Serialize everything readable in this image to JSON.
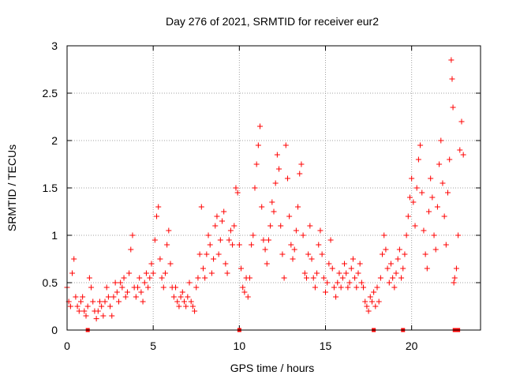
{
  "chart_data": {
    "type": "scatter",
    "title": "Day 276 of 2021, SRMTID for receiver eur2",
    "xlabel": "GPS time / hours",
    "ylabel": "SRMTID / TECUs",
    "xlim": [
      0,
      24
    ],
    "ylim": [
      0,
      3
    ],
    "xticks": [
      0,
      5,
      10,
      15,
      20
    ],
    "xtick_labels": [
      "0",
      "5",
      "10",
      "15",
      "20"
    ],
    "yticks": [
      0,
      0.5,
      1,
      1.5,
      2,
      2.5,
      3
    ],
    "ytick_labels": [
      "0",
      "0.5",
      "1",
      "1.5",
      "2",
      "2.5",
      "3"
    ],
    "grid": true,
    "marker": "+",
    "color": "#ff0000",
    "series": [
      {
        "name": "SRMTID",
        "points": [
          [
            0.0,
            0.45
          ],
          [
            0.1,
            0.3
          ],
          [
            0.2,
            0.25
          ],
          [
            0.3,
            0.6
          ],
          [
            0.4,
            0.75
          ],
          [
            0.5,
            0.35
          ],
          [
            0.6,
            0.25
          ],
          [
            0.7,
            0.2
          ],
          [
            0.8,
            0.3
          ],
          [
            0.9,
            0.35
          ],
          [
            1.0,
            0.2
          ],
          [
            1.1,
            0.15
          ],
          [
            1.2,
            0.25
          ],
          [
            1.3,
            0.55
          ],
          [
            1.4,
            0.45
          ],
          [
            1.5,
            0.3
          ],
          [
            1.6,
            0.2
          ],
          [
            1.7,
            0.12
          ],
          [
            1.8,
            0.2
          ],
          [
            1.9,
            0.3
          ],
          [
            2.0,
            0.25
          ],
          [
            2.1,
            0.15
          ],
          [
            2.2,
            0.3
          ],
          [
            2.3,
            0.45
          ],
          [
            2.4,
            0.35
          ],
          [
            2.5,
            0.25
          ],
          [
            2.6,
            0.15
          ],
          [
            2.7,
            0.35
          ],
          [
            2.8,
            0.5
          ],
          [
            2.9,
            0.4
          ],
          [
            3.0,
            0.3
          ],
          [
            3.1,
            0.5
          ],
          [
            3.2,
            0.45
          ],
          [
            3.3,
            0.55
          ],
          [
            3.4,
            0.35
          ],
          [
            3.5,
            0.4
          ],
          [
            3.6,
            0.6
          ],
          [
            3.7,
            0.85
          ],
          [
            3.8,
            1.0
          ],
          [
            3.9,
            0.45
          ],
          [
            4.0,
            0.35
          ],
          [
            4.1,
            0.45
          ],
          [
            4.2,
            0.55
          ],
          [
            4.3,
            0.4
          ],
          [
            4.4,
            0.3
          ],
          [
            4.5,
            0.5
          ],
          [
            4.6,
            0.6
          ],
          [
            4.7,
            0.45
          ],
          [
            4.8,
            0.55
          ],
          [
            4.9,
            0.7
          ],
          [
            5.0,
            0.6
          ],
          [
            5.1,
            0.95
          ],
          [
            5.2,
            1.2
          ],
          [
            5.3,
            1.3
          ],
          [
            5.4,
            0.75
          ],
          [
            5.5,
            0.55
          ],
          [
            5.6,
            0.45
          ],
          [
            5.7,
            0.6
          ],
          [
            5.8,
            0.9
          ],
          [
            5.9,
            1.05
          ],
          [
            6.0,
            0.7
          ],
          [
            6.1,
            0.45
          ],
          [
            6.2,
            0.35
          ],
          [
            6.3,
            0.45
          ],
          [
            6.4,
            0.3
          ],
          [
            6.5,
            0.25
          ],
          [
            6.6,
            0.35
          ],
          [
            6.7,
            0.4
          ],
          [
            6.8,
            0.3
          ],
          [
            6.9,
            0.25
          ],
          [
            7.0,
            0.35
          ],
          [
            7.1,
            0.5
          ],
          [
            7.2,
            0.3
          ],
          [
            7.3,
            0.25
          ],
          [
            7.4,
            0.2
          ],
          [
            7.5,
            0.45
          ],
          [
            7.6,
            0.55
          ],
          [
            7.7,
            0.8
          ],
          [
            7.8,
            1.3
          ],
          [
            7.9,
            0.65
          ],
          [
            8.0,
            0.55
          ],
          [
            8.1,
            0.8
          ],
          [
            8.2,
            1.0
          ],
          [
            8.3,
            0.9
          ],
          [
            8.4,
            0.6
          ],
          [
            8.5,
            0.75
          ],
          [
            8.6,
            1.1
          ],
          [
            8.7,
            1.2
          ],
          [
            8.8,
            0.8
          ],
          [
            8.9,
            0.95
          ],
          [
            9.0,
            1.15
          ],
          [
            9.1,
            1.25
          ],
          [
            9.2,
            0.7
          ],
          [
            9.3,
            0.6
          ],
          [
            9.4,
            0.95
          ],
          [
            9.5,
            1.05
          ],
          [
            9.6,
            0.9
          ],
          [
            9.7,
            1.1
          ],
          [
            9.8,
            1.5
          ],
          [
            9.9,
            1.45
          ],
          [
            10.0,
            0.9
          ],
          [
            10.1,
            0.65
          ],
          [
            10.2,
            0.45
          ],
          [
            10.3,
            0.4
          ],
          [
            10.4,
            0.55
          ],
          [
            10.5,
            0.35
          ],
          [
            10.6,
            0.55
          ],
          [
            10.7,
            0.9
          ],
          [
            10.8,
            1.0
          ],
          [
            10.9,
            1.5
          ],
          [
            11.0,
            1.75
          ],
          [
            11.1,
            1.95
          ],
          [
            11.2,
            2.15
          ],
          [
            11.3,
            1.3
          ],
          [
            11.4,
            0.95
          ],
          [
            11.5,
            0.85
          ],
          [
            11.6,
            0.7
          ],
          [
            11.7,
            0.95
          ],
          [
            11.8,
            1.1
          ],
          [
            11.9,
            1.35
          ],
          [
            12.0,
            1.25
          ],
          [
            12.1,
            1.55
          ],
          [
            12.2,
            1.85
          ],
          [
            12.3,
            1.7
          ],
          [
            12.4,
            1.1
          ],
          [
            12.5,
            0.8
          ],
          [
            12.6,
            0.55
          ],
          [
            12.7,
            1.95
          ],
          [
            12.8,
            1.6
          ],
          [
            12.9,
            1.2
          ],
          [
            13.0,
            0.9
          ],
          [
            13.1,
            0.75
          ],
          [
            13.2,
            0.85
          ],
          [
            13.3,
            1.05
          ],
          [
            13.4,
            1.3
          ],
          [
            13.5,
            1.65
          ],
          [
            13.6,
            1.75
          ],
          [
            13.7,
            1.0
          ],
          [
            13.8,
            0.6
          ],
          [
            13.9,
            0.55
          ],
          [
            14.0,
            0.8
          ],
          [
            14.1,
            1.1
          ],
          [
            14.2,
            0.75
          ],
          [
            14.3,
            0.55
          ],
          [
            14.4,
            0.45
          ],
          [
            14.5,
            0.6
          ],
          [
            14.6,
            0.9
          ],
          [
            14.7,
            1.05
          ],
          [
            14.8,
            0.8
          ],
          [
            14.9,
            0.55
          ],
          [
            15.0,
            0.4
          ],
          [
            15.1,
            0.5
          ],
          [
            15.2,
            0.7
          ],
          [
            15.3,
            0.95
          ],
          [
            15.4,
            0.65
          ],
          [
            15.5,
            0.45
          ],
          [
            15.6,
            0.35
          ],
          [
            15.7,
            0.5
          ],
          [
            15.8,
            0.6
          ],
          [
            15.9,
            0.45
          ],
          [
            16.0,
            0.55
          ],
          [
            16.1,
            0.7
          ],
          [
            16.2,
            0.6
          ],
          [
            16.3,
            0.45
          ],
          [
            16.4,
            0.5
          ],
          [
            16.5,
            0.65
          ],
          [
            16.6,
            0.75
          ],
          [
            16.7,
            0.55
          ],
          [
            16.8,
            0.45
          ],
          [
            16.9,
            0.6
          ],
          [
            17.0,
            0.7
          ],
          [
            17.1,
            0.5
          ],
          [
            17.2,
            0.45
          ],
          [
            17.3,
            0.3
          ],
          [
            17.4,
            0.25
          ],
          [
            17.5,
            0.2
          ],
          [
            17.6,
            0.35
          ],
          [
            17.7,
            0.3
          ],
          [
            17.8,
            0.4
          ],
          [
            17.9,
            0.25
          ],
          [
            18.0,
            0.45
          ],
          [
            18.1,
            0.3
          ],
          [
            18.2,
            0.55
          ],
          [
            18.3,
            0.8
          ],
          [
            18.4,
            1.0
          ],
          [
            18.5,
            0.85
          ],
          [
            18.6,
            0.65
          ],
          [
            18.7,
            0.5
          ],
          [
            18.8,
            0.7
          ],
          [
            18.9,
            0.55
          ],
          [
            19.0,
            0.45
          ],
          [
            19.1,
            0.6
          ],
          [
            19.2,
            0.75
          ],
          [
            19.3,
            0.85
          ],
          [
            19.4,
            0.55
          ],
          [
            19.5,
            0.65
          ],
          [
            19.6,
            0.8
          ],
          [
            19.7,
            1.0
          ],
          [
            19.8,
            1.2
          ],
          [
            19.9,
            1.4
          ],
          [
            20.0,
            1.6
          ],
          [
            20.1,
            1.35
          ],
          [
            20.2,
            1.1
          ],
          [
            20.3,
            1.5
          ],
          [
            20.4,
            1.8
          ],
          [
            20.5,
            1.95
          ],
          [
            20.6,
            1.45
          ],
          [
            20.7,
            1.05
          ],
          [
            20.8,
            0.8
          ],
          [
            20.9,
            0.65
          ],
          [
            21.0,
            1.25
          ],
          [
            21.1,
            1.6
          ],
          [
            21.2,
            1.4
          ],
          [
            21.3,
            1.0
          ],
          [
            21.4,
            0.85
          ],
          [
            21.5,
            1.3
          ],
          [
            21.6,
            1.75
          ],
          [
            21.7,
            2.0
          ],
          [
            21.8,
            1.55
          ],
          [
            21.9,
            1.2
          ],
          [
            22.0,
            0.9
          ],
          [
            22.1,
            1.45
          ],
          [
            22.2,
            1.8
          ],
          [
            22.3,
            2.85
          ],
          [
            22.35,
            2.65
          ],
          [
            22.4,
            2.35
          ],
          [
            22.45,
            0.5
          ],
          [
            22.5,
            0.55
          ],
          [
            22.6,
            0.65
          ],
          [
            22.7,
            1.0
          ],
          [
            22.8,
            1.9
          ],
          [
            22.9,
            2.2
          ],
          [
            23.0,
            1.85
          ]
        ]
      }
    ],
    "markers_at_zero": [
      1.2,
      10.0,
      17.8,
      19.5,
      22.5,
      22.7
    ]
  }
}
